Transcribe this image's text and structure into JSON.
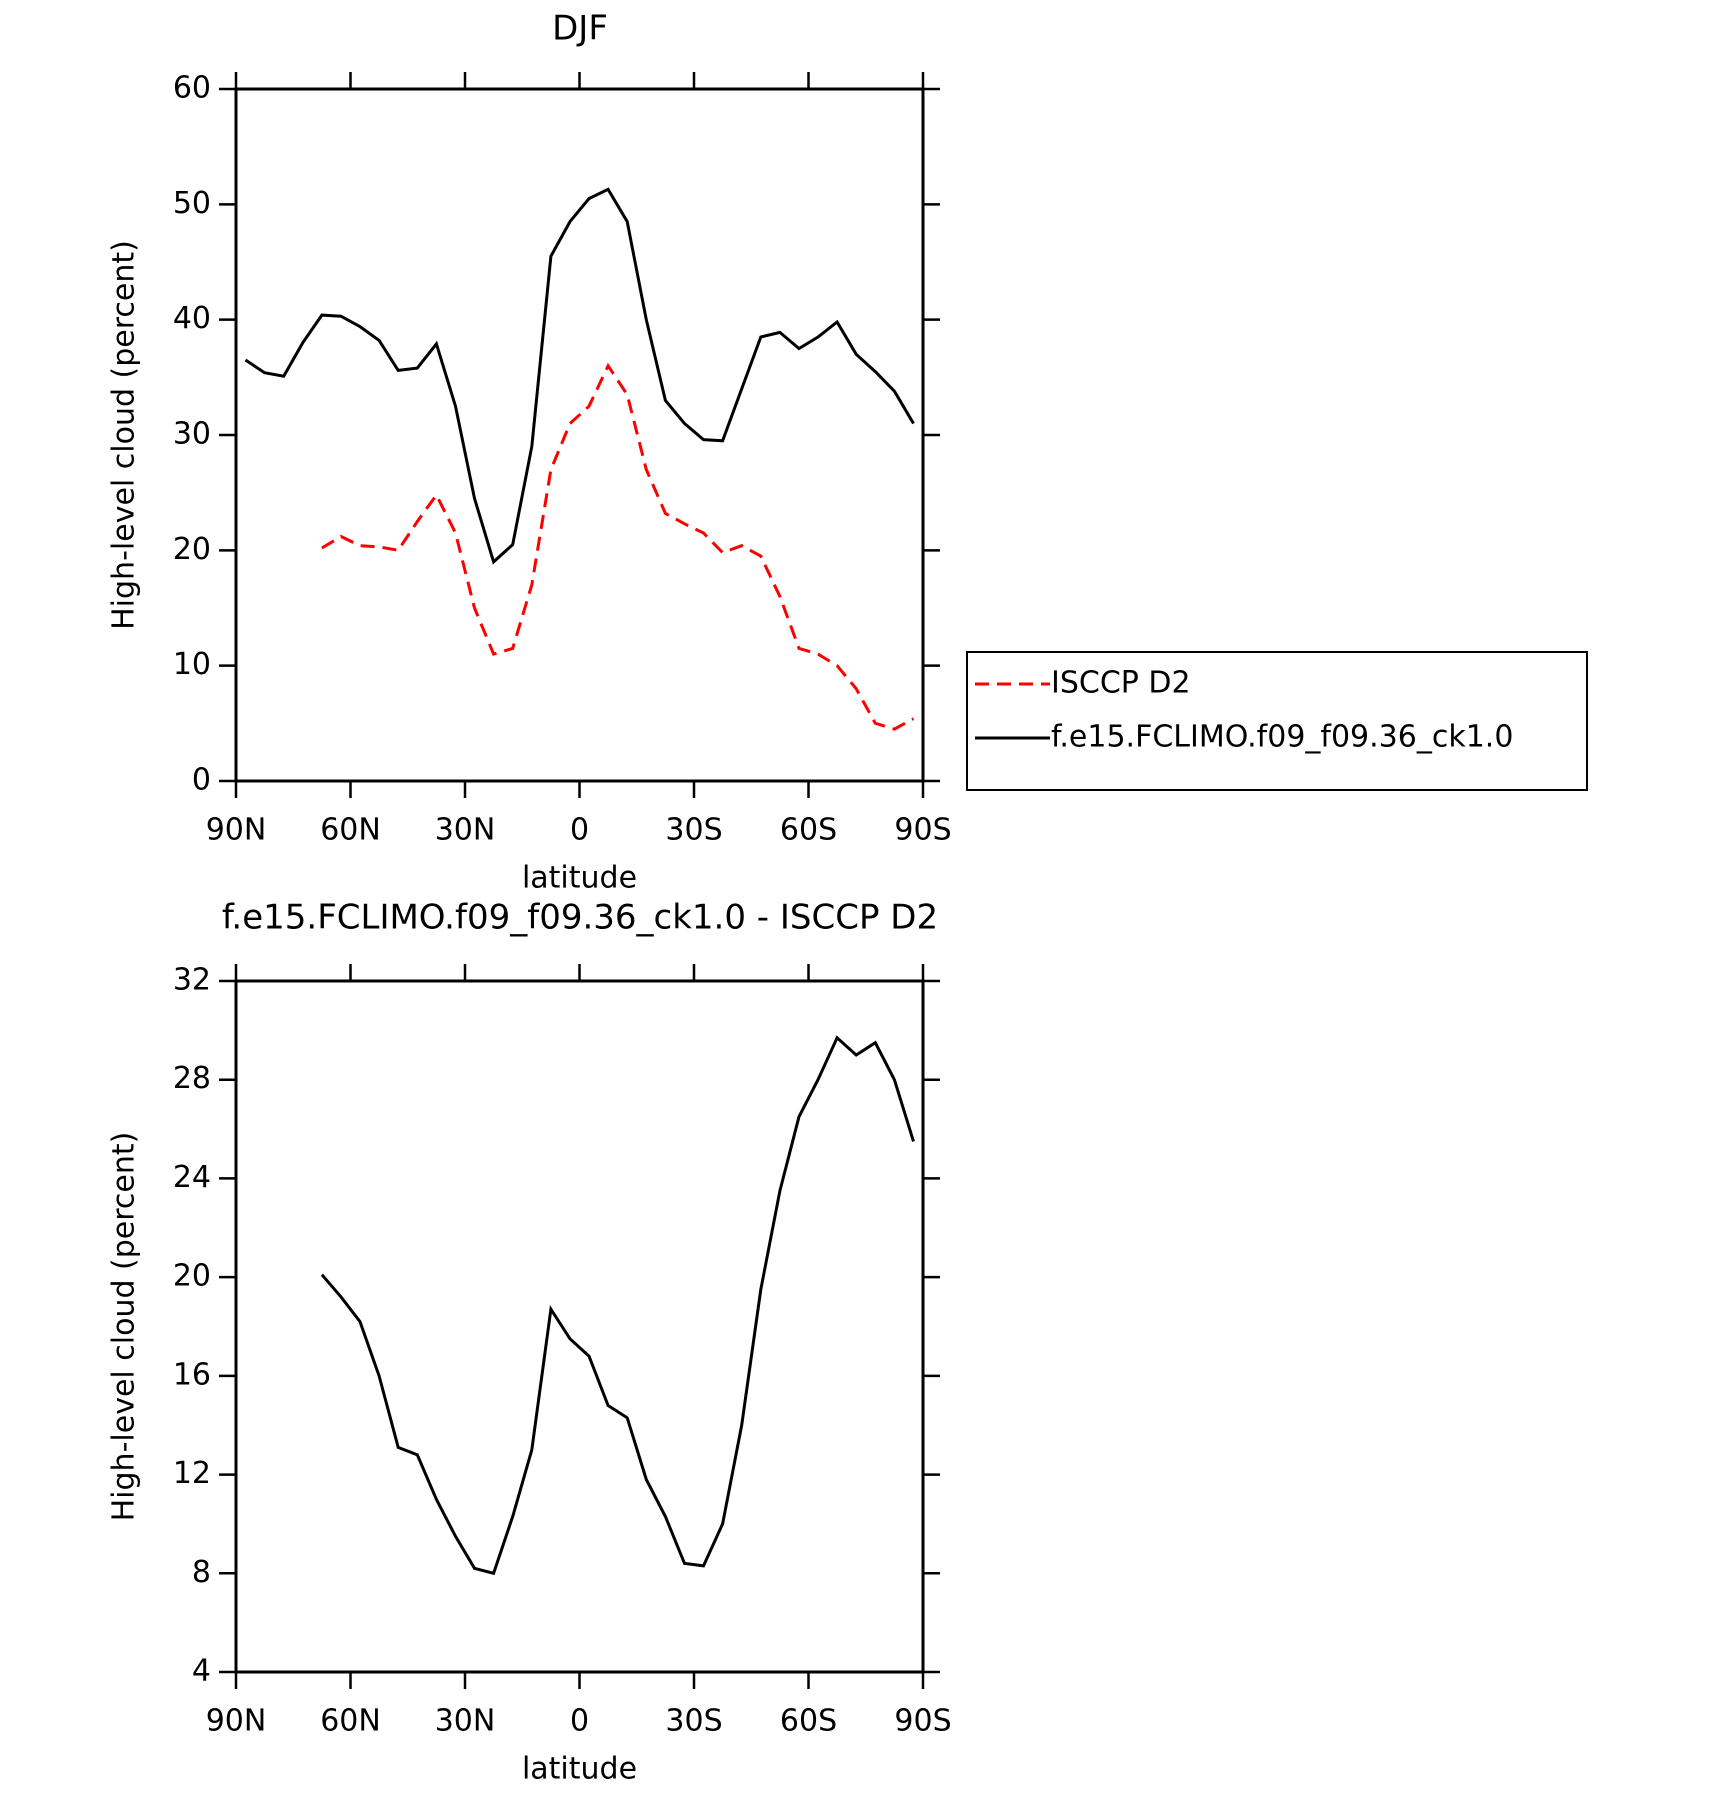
{
  "chart_data": [
    {
      "type": "line",
      "title": "DJF",
      "xlabel": "latitude",
      "ylabel": "High-level cloud (percent)",
      "x": [
        87.5,
        82.5,
        77.5,
        72.5,
        67.5,
        62.5,
        57.5,
        52.5,
        47.5,
        42.5,
        37.5,
        32.5,
        27.5,
        22.5,
        17.5,
        12.5,
        7.5,
        2.5,
        -2.5,
        -7.5,
        -12.5,
        -17.5,
        -22.5,
        -27.5,
        -32.5,
        -37.5,
        -42.5,
        -47.5,
        -52.5,
        -57.5,
        -62.5,
        -67.5,
        -72.5,
        -77.5,
        -82.5,
        -87.5
      ],
      "xlim": [
        90,
        -90
      ],
      "xticks": [
        {
          "value": 90,
          "label": "90N"
        },
        {
          "value": 60,
          "label": "60N"
        },
        {
          "value": 30,
          "label": "30N"
        },
        0,
        {
          "value": -30,
          "label": "30S"
        },
        {
          "value": -60,
          "label": "60S"
        },
        {
          "value": -90,
          "label": "90S"
        }
      ],
      "ylim": [
        0,
        60
      ],
      "yticks": [
        0,
        10,
        20,
        30,
        40,
        50,
        60
      ],
      "grid": false,
      "legend": "right",
      "series": [
        {
          "name": "ISCCP D2",
          "color": "#ff0000",
          "linestyle": "dashed",
          "values": [
            null,
            null,
            null,
            null,
            20.2,
            21.2,
            20.4,
            20.3,
            20,
            22.5,
            24.8,
            21.5,
            15,
            11,
            11.5,
            17,
            27,
            31,
            32.5,
            36,
            33.5,
            27,
            23.2,
            22.3,
            21.5,
            19.8,
            20.4,
            19.5,
            16,
            11.5,
            11,
            10,
            8,
            5,
            4.5,
            5.4
          ]
        },
        {
          "name": "f.e15.FCLIMO.f09_f09.36_ck1.0",
          "color": "#000000",
          "linestyle": "solid",
          "values": [
            36.5,
            35.4,
            35.1,
            38,
            40.4,
            40.3,
            39.4,
            38.2,
            35.6,
            35.8,
            37.9,
            32.5,
            24.5,
            19,
            20.5,
            29,
            45.5,
            48.5,
            50.5,
            51.3,
            48.5,
            40,
            33,
            31,
            29.6,
            29.5,
            34,
            38.5,
            38.9,
            37.5,
            38.5,
            39.8,
            37,
            35.5,
            33.8,
            31
          ]
        }
      ]
    },
    {
      "type": "line",
      "title": "f.e15.FCLIMO.f09_f09.36_ck1.0 - ISCCP D2",
      "xlabel": "latitude",
      "ylabel": "High-level cloud (percent)",
      "x": [
        87.5,
        82.5,
        77.5,
        72.5,
        67.5,
        62.5,
        57.5,
        52.5,
        47.5,
        42.5,
        37.5,
        32.5,
        27.5,
        22.5,
        17.5,
        12.5,
        7.5,
        2.5,
        -2.5,
        -7.5,
        -12.5,
        -17.5,
        -22.5,
        -27.5,
        -32.5,
        -37.5,
        -42.5,
        -47.5,
        -52.5,
        -57.5,
        -62.5,
        -67.5,
        -72.5,
        -77.5,
        -82.5,
        -87.5
      ],
      "xlim": [
        90,
        -90
      ],
      "xticks": [
        {
          "value": 90,
          "label": "90N"
        },
        {
          "value": 60,
          "label": "60N"
        },
        {
          "value": 30,
          "label": "30N"
        },
        0,
        {
          "value": -30,
          "label": "30S"
        },
        {
          "value": -60,
          "label": "60S"
        },
        {
          "value": -90,
          "label": "90S"
        }
      ],
      "ylim": [
        4,
        32
      ],
      "yticks": [
        4,
        8,
        12,
        16,
        20,
        24,
        28,
        32
      ],
      "grid": false,
      "series": [
        {
          "color": "#000000",
          "linestyle": "solid",
          "values": [
            null,
            null,
            null,
            null,
            20.1,
            19.2,
            18.2,
            16,
            13.1,
            12.8,
            11,
            9.5,
            8.2,
            8,
            10.3,
            13,
            18.7,
            17.5,
            16.8,
            14.8,
            14.3,
            11.8,
            10.3,
            8.4,
            8.3,
            10,
            14,
            19.5,
            23.5,
            26.5,
            28,
            29.7,
            29,
            29.5,
            28,
            25.5
          ]
        }
      ]
    }
  ]
}
